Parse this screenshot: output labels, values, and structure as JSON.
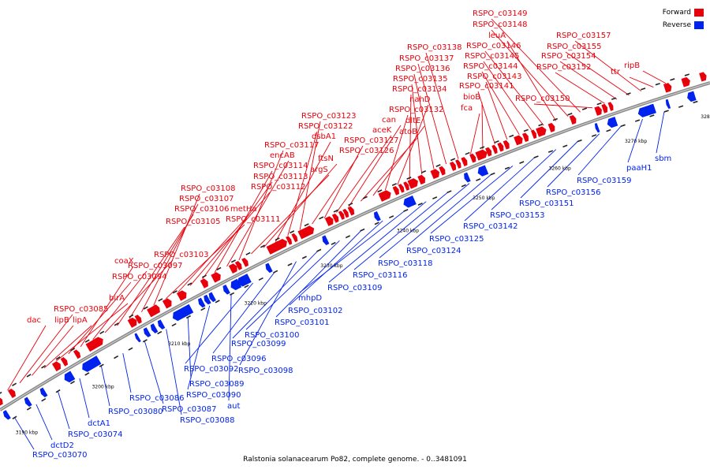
{
  "colors": {
    "forward": "#e8000b",
    "reverse": "#0022ee",
    "backbone": "#888888"
  },
  "legend": {
    "forward_label": "Forward",
    "reverse_label": "Reverse"
  },
  "caption": "Ralstonia solanacearum Po82, complete genome. - 0..3481091",
  "ticks": [
    "3190 kbp",
    "3200 kbp",
    "3210 kbp",
    "3220 kbp",
    "3230 kbp",
    "3240 kbp",
    "3250 kbp",
    "3260 kbp",
    "3270 kbp",
    "3280 kbp"
  ],
  "forward_genes": [
    "dac",
    "RSPO_c03085",
    "lipB",
    "lipA",
    "birA",
    "RSPO_c03094",
    "coaX",
    "RSPO_c03097",
    "RSPO_c03103",
    "RSPO_c03105",
    "RSPO_c03106",
    "RSPO_c03107",
    "RSPO_c03108",
    "RSPO_c03111",
    "metHa",
    "RSPO_c03112",
    "RSPO_c03113",
    "RSPO_c03114",
    "encAB",
    "RSPO_c03117",
    "argS",
    "ftsN",
    "dsbA1",
    "RSPO_c03122",
    "RSPO_c03123",
    "RSPO_c03126",
    "RSPO_c03127",
    "aceK",
    "can",
    "atoB",
    "dltE",
    "RSPO_c03132",
    "nahD",
    "RSPO_c03134",
    "RSPO_c03135",
    "RSPO_c03136",
    "RSPO_c03137",
    "RSPO_c03138",
    "fca",
    "bioB",
    "RSPO_c03141",
    "RSPO_c03143",
    "RSPO_c03144",
    "RSPO_c03145",
    "RSPO_c03146",
    "leuA",
    "RSPO_c03148",
    "RSPO_c03149",
    "RSPO_c03150",
    "RSPO_c03152",
    "RSPO_c03154",
    "RSPO_c03155",
    "RSPO_c03157",
    "ttr",
    "ripB"
  ],
  "reverse_genes": [
    "RSPO_c03070",
    "dctD2",
    "RSPO_c03074",
    "dctA1",
    "RSPO_c03080",
    "RSPO_c03086",
    "RSPO_c03087",
    "RSPO_c03088",
    "RSPO_c03089",
    "RSPO_c03090",
    "aut",
    "RSPO_c03092",
    "RSPO_c03096",
    "RSPO_c03098",
    "RSPO_c03099",
    "RSPO_c03100",
    "RSPO_c03101",
    "RSPO_c03102",
    "mhpD",
    "RSPO_c03109",
    "RSPO_c03116",
    "RSPO_c03118",
    "RSPO_c03124",
    "RSPO_c03125",
    "RSPO_c03142",
    "RSPO_c03153",
    "RSPO_c03151",
    "RSPO_c03156",
    "RSPO_c03159",
    "paaH1",
    "sbm"
  ]
}
